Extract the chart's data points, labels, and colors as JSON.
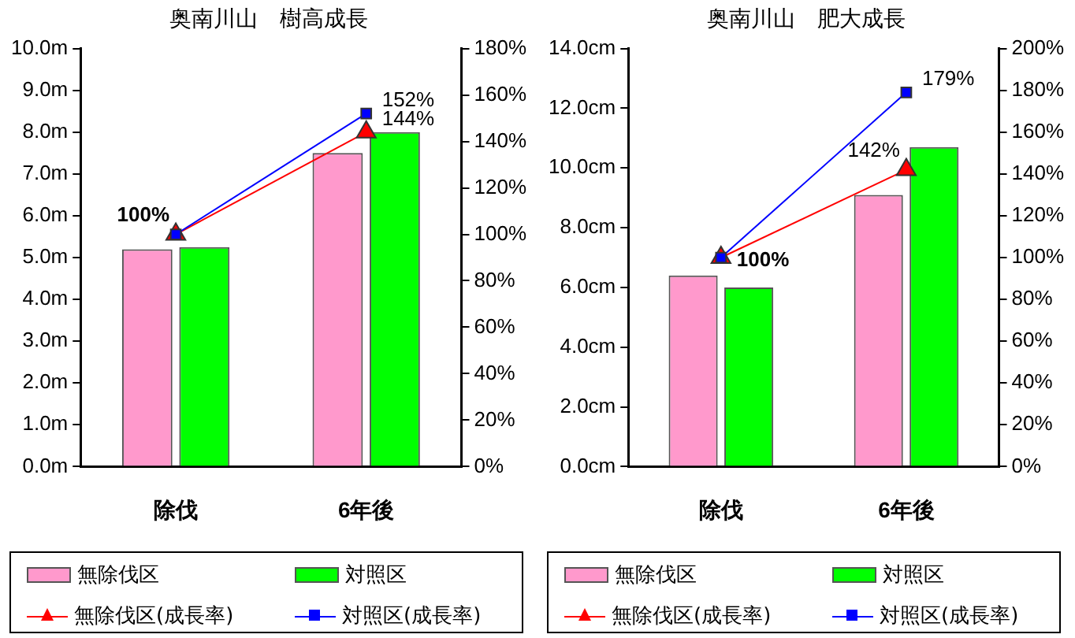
{
  "chart_data": [
    {
      "type": "bar",
      "title": "奥南川山　樹高成長",
      "categories": [
        "除伐",
        "6年後"
      ],
      "legend": "bottom",
      "ylim": [
        0,
        10
      ],
      "yticks": [
        {
          "value": 0,
          "label": "0.0m"
        },
        {
          "value": 1,
          "label": "1.0m"
        },
        {
          "value": 2,
          "label": "2.0m"
        },
        {
          "value": 3,
          "label": "3.0m"
        },
        {
          "value": 4,
          "label": "4.0m"
        },
        {
          "value": 5,
          "label": "5.0m"
        },
        {
          "value": 6,
          "label": "6.0m"
        },
        {
          "value": 7,
          "label": "7.0m"
        },
        {
          "value": 8,
          "label": "8.0m"
        },
        {
          "value": 9,
          "label": "9.0m"
        },
        {
          "value": 10,
          "label": "10.0m"
        }
      ],
      "y2lim": [
        0,
        180
      ],
      "y2ticks": [
        {
          "value": 0,
          "label": "0%"
        },
        {
          "value": 20,
          "label": "20%"
        },
        {
          "value": 40,
          "label": "40%"
        },
        {
          "value": 60,
          "label": "60%"
        },
        {
          "value": 80,
          "label": "80%"
        },
        {
          "value": 100,
          "label": "100%"
        },
        {
          "value": 120,
          "label": "120%"
        },
        {
          "value": 140,
          "label": "140%"
        },
        {
          "value": 160,
          "label": "160%"
        },
        {
          "value": 180,
          "label": "180%"
        }
      ],
      "series": [
        {
          "name": "無除伐区",
          "color": "#ff99cc",
          "values": [
            5.2,
            7.5
          ]
        },
        {
          "name": "対照区",
          "color": "#00ff00",
          "values": [
            5.25,
            8.0
          ]
        },
        {
          "name": "無除伐区(成長率)",
          "type": "line",
          "axis": "y2",
          "marker": "triangle",
          "color": "#ff0000",
          "values": [
            100,
            144
          ],
          "value_labels": [
            "100%",
            "144%"
          ]
        },
        {
          "name": "対照区(成長率)",
          "type": "line",
          "axis": "y2",
          "marker": "square",
          "color": "#0000ff",
          "values": [
            100,
            152
          ],
          "value_labels": [
            null,
            "152%"
          ]
        }
      ]
    },
    {
      "type": "bar",
      "title": "奥南川山　肥大成長",
      "categories": [
        "除伐",
        "6年後"
      ],
      "legend": "bottom",
      "ylim": [
        0,
        14
      ],
      "yticks": [
        {
          "value": 0,
          "label": "0.0cm"
        },
        {
          "value": 2,
          "label": "2.0cm"
        },
        {
          "value": 4,
          "label": "4.0cm"
        },
        {
          "value": 6,
          "label": "6.0cm"
        },
        {
          "value": 8,
          "label": "8.0cm"
        },
        {
          "value": 10,
          "label": "10.0cm"
        },
        {
          "value": 12,
          "label": "12.0cm"
        },
        {
          "value": 14,
          "label": "14.0cm"
        }
      ],
      "y2lim": [
        0,
        200
      ],
      "y2ticks": [
        {
          "value": 0,
          "label": "0%"
        },
        {
          "value": 20,
          "label": "20%"
        },
        {
          "value": 40,
          "label": "40%"
        },
        {
          "value": 60,
          "label": "60%"
        },
        {
          "value": 80,
          "label": "80%"
        },
        {
          "value": 100,
          "label": "100%"
        },
        {
          "value": 120,
          "label": "120%"
        },
        {
          "value": 140,
          "label": "140%"
        },
        {
          "value": 160,
          "label": "160%"
        },
        {
          "value": 180,
          "label": "180%"
        },
        {
          "value": 200,
          "label": "200%"
        }
      ],
      "series": [
        {
          "name": "無除伐区",
          "color": "#ff99cc",
          "values": [
            6.4,
            9.1
          ]
        },
        {
          "name": "対照区",
          "color": "#00ff00",
          "values": [
            6.0,
            10.7
          ]
        },
        {
          "name": "無除伐区(成長率)",
          "type": "line",
          "axis": "y2",
          "marker": "triangle",
          "color": "#ff0000",
          "values": [
            100,
            142
          ],
          "value_labels": [
            "100%",
            "142%"
          ]
        },
        {
          "name": "対照区(成長率)",
          "type": "line",
          "axis": "y2",
          "marker": "square",
          "color": "#0000ff",
          "values": [
            100,
            179
          ],
          "value_labels": [
            null,
            "179%"
          ]
        }
      ]
    }
  ]
}
